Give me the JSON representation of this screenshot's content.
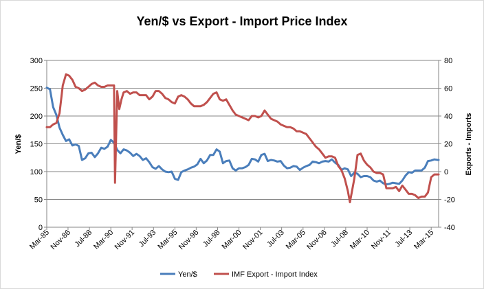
{
  "chart_data": {
    "type": "line",
    "title": "Yen/$ vs Export - Import Price Index",
    "ylabel": "Yen/$",
    "y2label": "Exports - Imports",
    "ylim": [
      0,
      300
    ],
    "y2lim": [
      -40,
      80
    ],
    "yticks": [
      0,
      50,
      100,
      150,
      200,
      250,
      300
    ],
    "y2ticks": [
      -40,
      -20,
      0,
      20,
      40,
      60,
      80
    ],
    "x_range": [
      1985.17,
      2015.75
    ],
    "xtick_labels": [
      {
        "label": "Mar-85",
        "x": 1985.17
      },
      {
        "label": "Nov-86",
        "x": 1986.83
      },
      {
        "label": "Jul-88",
        "x": 1988.5
      },
      {
        "label": "Mar-90",
        "x": 1990.17
      },
      {
        "label": "Nov-91",
        "x": 1991.83
      },
      {
        "label": "Jul-93",
        "x": 1993.5
      },
      {
        "label": "Mar-95",
        "x": 1995.17
      },
      {
        "label": "Nov-96",
        "x": 1996.83
      },
      {
        "label": "Jul-98",
        "x": 1998.5
      },
      {
        "label": "Mar-00",
        "x": 2000.17
      },
      {
        "label": "Nov-01",
        "x": 2001.83
      },
      {
        "label": "Jul-03",
        "x": 2003.5
      },
      {
        "label": "Mar-05",
        "x": 2005.17
      },
      {
        "label": "Nov-06",
        "x": 2006.83
      },
      {
        "label": "Jul-08",
        "x": 2008.5
      },
      {
        "label": "Mar-10",
        "x": 2010.17
      },
      {
        "label": "Nov-11",
        "x": 2011.83
      },
      {
        "label": "Jul-13",
        "x": 2013.5
      },
      {
        "label": "Mar-15",
        "x": 2015.17
      }
    ],
    "grid": true,
    "legend_position": "bottom",
    "series": [
      {
        "name": "Yen/$",
        "axis": "left",
        "color": "#4a7ebb",
        "points": [
          [
            1985.17,
            251
          ],
          [
            1985.42,
            248
          ],
          [
            1985.67,
            216
          ],
          [
            1985.92,
            202
          ],
          [
            1986.17,
            179
          ],
          [
            1986.42,
            166
          ],
          [
            1986.67,
            155
          ],
          [
            1986.92,
            158
          ],
          [
            1987.17,
            147
          ],
          [
            1987.42,
            149
          ],
          [
            1987.67,
            146
          ],
          [
            1987.92,
            121
          ],
          [
            1988.17,
            124
          ],
          [
            1988.42,
            133
          ],
          [
            1988.67,
            134
          ],
          [
            1988.92,
            126
          ],
          [
            1989.17,
            133
          ],
          [
            1989.42,
            143
          ],
          [
            1989.67,
            141
          ],
          [
            1989.92,
            145
          ],
          [
            1990.17,
            157
          ],
          [
            1990.42,
            152
          ],
          [
            1990.67,
            139
          ],
          [
            1990.92,
            133
          ],
          [
            1991.17,
            140
          ],
          [
            1991.42,
            138
          ],
          [
            1991.67,
            134
          ],
          [
            1991.92,
            128
          ],
          [
            1992.17,
            132
          ],
          [
            1992.42,
            128
          ],
          [
            1992.67,
            121
          ],
          [
            1992.92,
            124
          ],
          [
            1993.17,
            117
          ],
          [
            1993.42,
            108
          ],
          [
            1993.67,
            105
          ],
          [
            1993.92,
            110
          ],
          [
            1994.17,
            104
          ],
          [
            1994.42,
            100
          ],
          [
            1994.67,
            99
          ],
          [
            1994.92,
            100
          ],
          [
            1995.17,
            87
          ],
          [
            1995.42,
            85
          ],
          [
            1995.67,
            99
          ],
          [
            1995.92,
            102
          ],
          [
            1996.17,
            104
          ],
          [
            1996.42,
            107
          ],
          [
            1996.67,
            109
          ],
          [
            1996.92,
            113
          ],
          [
            1997.17,
            123
          ],
          [
            1997.42,
            115
          ],
          [
            1997.67,
            120
          ],
          [
            1997.92,
            130
          ],
          [
            1998.17,
            130
          ],
          [
            1998.42,
            140
          ],
          [
            1998.67,
            136
          ],
          [
            1998.92,
            115
          ],
          [
            1999.17,
            119
          ],
          [
            1999.42,
            120
          ],
          [
            1999.67,
            106
          ],
          [
            1999.92,
            102
          ],
          [
            2000.17,
            106
          ],
          [
            2000.42,
            106
          ],
          [
            2000.67,
            108
          ],
          [
            2000.92,
            112
          ],
          [
            2001.17,
            123
          ],
          [
            2001.42,
            122
          ],
          [
            2001.67,
            118
          ],
          [
            2001.92,
            130
          ],
          [
            2002.17,
            132
          ],
          [
            2002.42,
            119
          ],
          [
            2002.67,
            121
          ],
          [
            2002.92,
            120
          ],
          [
            2003.17,
            118
          ],
          [
            2003.42,
            119
          ],
          [
            2003.67,
            111
          ],
          [
            2003.92,
            106
          ],
          [
            2004.17,
            107
          ],
          [
            2004.42,
            110
          ],
          [
            2004.67,
            109
          ],
          [
            2004.92,
            103
          ],
          [
            2005.17,
            107
          ],
          [
            2005.42,
            110
          ],
          [
            2005.67,
            112
          ],
          [
            2005.92,
            118
          ],
          [
            2006.17,
            117
          ],
          [
            2006.42,
            115
          ],
          [
            2006.67,
            118
          ],
          [
            2006.92,
            119
          ],
          [
            2007.17,
            118
          ],
          [
            2007.42,
            122
          ],
          [
            2007.67,
            116
          ],
          [
            2007.92,
            112
          ],
          [
            2008.17,
            103
          ],
          [
            2008.42,
            106
          ],
          [
            2008.67,
            104
          ],
          [
            2008.92,
            92
          ],
          [
            2009.17,
            98
          ],
          [
            2009.42,
            96
          ],
          [
            2009.67,
            90
          ],
          [
            2009.92,
            92
          ],
          [
            2010.17,
            92
          ],
          [
            2010.42,
            90
          ],
          [
            2010.67,
            84
          ],
          [
            2010.92,
            82
          ],
          [
            2011.17,
            84
          ],
          [
            2011.42,
            79
          ],
          [
            2011.67,
            77
          ],
          [
            2011.92,
            78
          ],
          [
            2012.17,
            80
          ],
          [
            2012.42,
            79
          ],
          [
            2012.67,
            78
          ],
          [
            2012.92,
            84
          ],
          [
            2013.17,
            93
          ],
          [
            2013.42,
            99
          ],
          [
            2013.67,
            98
          ],
          [
            2013.92,
            102
          ],
          [
            2014.17,
            102
          ],
          [
            2014.42,
            102
          ],
          [
            2014.67,
            107
          ],
          [
            2014.92,
            119
          ],
          [
            2015.17,
            120
          ],
          [
            2015.42,
            122
          ],
          [
            2015.67,
            121
          ],
          [
            2015.75,
            121
          ]
        ]
      },
      {
        "name": "IMF Export - Import Index",
        "axis": "right",
        "color": "#c0504d",
        "points": [
          [
            1985.17,
            32
          ],
          [
            1985.42,
            32
          ],
          [
            1985.67,
            34
          ],
          [
            1985.92,
            35
          ],
          [
            1986.17,
            42
          ],
          [
            1986.42,
            62
          ],
          [
            1986.67,
            70
          ],
          [
            1986.92,
            69
          ],
          [
            1987.17,
            66
          ],
          [
            1987.42,
            61
          ],
          [
            1987.67,
            60
          ],
          [
            1987.92,
            58
          ],
          [
            1988.17,
            59
          ],
          [
            1988.42,
            61
          ],
          [
            1988.67,
            63
          ],
          [
            1988.92,
            64
          ],
          [
            1989.17,
            62
          ],
          [
            1989.42,
            61
          ],
          [
            1989.67,
            61
          ],
          [
            1989.92,
            62
          ],
          [
            1990.17,
            62
          ],
          [
            1990.42,
            62
          ],
          [
            1990.5,
            -8
          ],
          [
            1990.67,
            58
          ],
          [
            1990.83,
            45
          ],
          [
            1991.0,
            52
          ],
          [
            1991.17,
            57
          ],
          [
            1991.42,
            58
          ],
          [
            1991.67,
            56
          ],
          [
            1991.92,
            57
          ],
          [
            1992.17,
            57
          ],
          [
            1992.42,
            55
          ],
          [
            1992.67,
            55
          ],
          [
            1992.92,
            55
          ],
          [
            1993.17,
            52
          ],
          [
            1993.42,
            54
          ],
          [
            1993.67,
            58
          ],
          [
            1993.92,
            58
          ],
          [
            1994.17,
            56
          ],
          [
            1994.42,
            53
          ],
          [
            1994.67,
            52
          ],
          [
            1994.92,
            50
          ],
          [
            1995.17,
            49
          ],
          [
            1995.42,
            54
          ],
          [
            1995.67,
            55
          ],
          [
            1995.92,
            54
          ],
          [
            1996.17,
            52
          ],
          [
            1996.42,
            49
          ],
          [
            1996.67,
            47
          ],
          [
            1996.92,
            47
          ],
          [
            1997.17,
            47
          ],
          [
            1997.42,
            48
          ],
          [
            1997.67,
            50
          ],
          [
            1997.92,
            53
          ],
          [
            1998.17,
            56
          ],
          [
            1998.42,
            57
          ],
          [
            1998.67,
            52
          ],
          [
            1998.92,
            51
          ],
          [
            1999.17,
            52
          ],
          [
            1999.42,
            48
          ],
          [
            1999.67,
            44
          ],
          [
            1999.92,
            41
          ],
          [
            2000.17,
            40
          ],
          [
            2000.42,
            39
          ],
          [
            2000.67,
            38
          ],
          [
            2000.92,
            37
          ],
          [
            2001.17,
            40
          ],
          [
            2001.42,
            40
          ],
          [
            2001.67,
            39
          ],
          [
            2001.92,
            40
          ],
          [
            2002.17,
            44
          ],
          [
            2002.42,
            41
          ],
          [
            2002.67,
            38
          ],
          [
            2002.92,
            37
          ],
          [
            2003.17,
            36
          ],
          [
            2003.42,
            34
          ],
          [
            2003.67,
            33
          ],
          [
            2003.92,
            32
          ],
          [
            2004.17,
            32
          ],
          [
            2004.42,
            31
          ],
          [
            2004.67,
            29
          ],
          [
            2004.92,
            29
          ],
          [
            2005.17,
            28
          ],
          [
            2005.42,
            27
          ],
          [
            2005.67,
            24
          ],
          [
            2005.92,
            21
          ],
          [
            2006.17,
            18
          ],
          [
            2006.42,
            16
          ],
          [
            2006.67,
            13
          ],
          [
            2006.92,
            10
          ],
          [
            2007.17,
            11
          ],
          [
            2007.42,
            11
          ],
          [
            2007.67,
            10
          ],
          [
            2007.92,
            4
          ],
          [
            2008.17,
            1
          ],
          [
            2008.42,
            -5
          ],
          [
            2008.67,
            -14
          ],
          [
            2008.83,
            -22
          ],
          [
            2009.17,
            -5
          ],
          [
            2009.42,
            12
          ],
          [
            2009.67,
            13
          ],
          [
            2009.92,
            8
          ],
          [
            2010.17,
            5
          ],
          [
            2010.42,
            3
          ],
          [
            2010.67,
            0
          ],
          [
            2010.92,
            -1
          ],
          [
            2011.17,
            -1
          ],
          [
            2011.42,
            -2
          ],
          [
            2011.67,
            -12
          ],
          [
            2011.92,
            -12
          ],
          [
            2012.17,
            -12
          ],
          [
            2012.42,
            -11
          ],
          [
            2012.67,
            -14
          ],
          [
            2012.92,
            -10
          ],
          [
            2013.17,
            -13
          ],
          [
            2013.42,
            -16
          ],
          [
            2013.67,
            -16
          ],
          [
            2013.92,
            -17
          ],
          [
            2014.17,
            -19
          ],
          [
            2014.42,
            -18
          ],
          [
            2014.67,
            -18
          ],
          [
            2014.92,
            -15
          ],
          [
            2015.17,
            -4
          ],
          [
            2015.42,
            -2
          ],
          [
            2015.67,
            -2
          ],
          [
            2015.75,
            -2
          ]
        ]
      }
    ]
  }
}
